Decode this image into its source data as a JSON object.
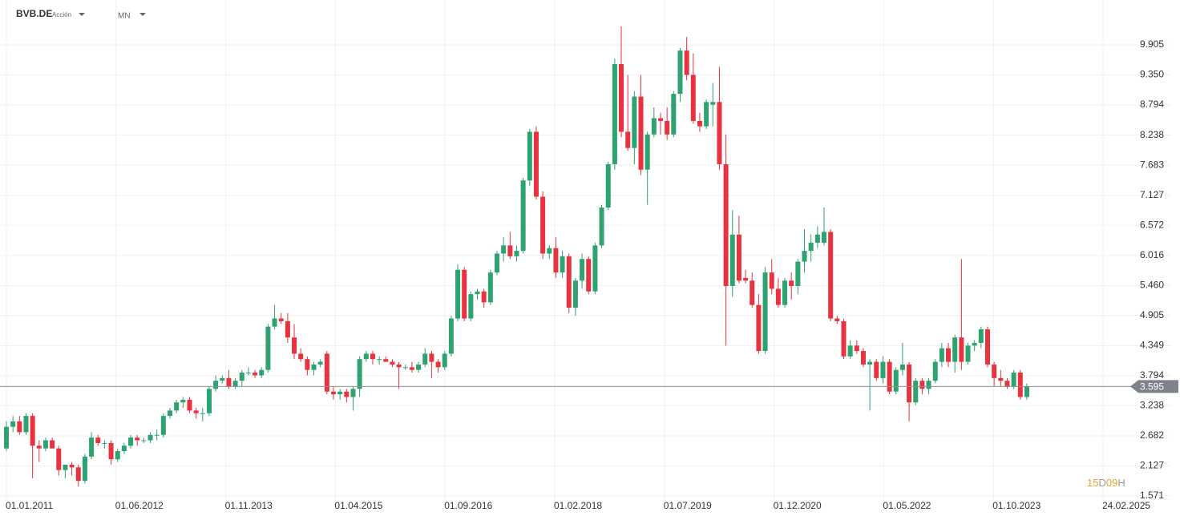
{
  "header": {
    "symbol": "BVB.DE",
    "kind": "Acción",
    "interval": "MN"
  },
  "timer": {
    "days": "15",
    "days_unit": "D",
    "hours": "09",
    "hours_unit": "H"
  },
  "chart_data": {
    "type": "candlestick",
    "open": [
      2.45,
      2.85,
      2.95,
      2.75,
      3.05,
      2.5,
      2.45,
      2.6,
      2.45,
      2.05,
      2.15,
      2.1,
      1.85,
      2.3,
      2.65,
      2.55,
      2.55,
      2.25,
      2.4,
      2.5,
      2.65,
      2.6,
      2.6,
      2.7,
      2.7,
      3.05,
      3.15,
      3.3,
      3.35,
      3.15,
      3.1,
      3.1,
      3.55,
      3.7,
      3.75,
      3.6,
      3.7,
      3.85,
      3.85,
      3.8,
      3.9,
      4.7,
      4.85,
      4.8,
      4.5,
      4.2,
      4.1,
      3.9,
      4.0,
      4.2,
      3.5,
      3.45,
      3.5,
      3.4,
      3.55,
      4.1,
      4.2,
      4.1,
      4.1,
      4.05,
      4.0,
      3.95,
      3.95,
      3.9,
      4.0,
      4.2,
      4.05,
      3.95,
      4.2,
      4.85,
      5.75,
      4.85,
      5.3,
      5.35,
      5.15,
      5.7,
      6.05,
      6.2,
      6.0,
      6.1,
      7.4,
      8.3,
      7.1,
      6.05,
      6.15,
      5.7,
      6.0,
      5.05,
      5.55,
      5.95,
      5.35,
      6.2,
      6.9,
      7.7,
      9.55,
      8.3,
      8.0,
      8.95,
      7.6,
      8.25,
      8.55,
      8.5,
      8.25,
      9.0,
      9.8,
      9.35,
      8.5,
      8.4,
      8.8,
      8.85,
      7.7,
      5.45,
      6.4,
      5.6,
      5.55,
      5.1,
      4.25,
      5.7,
      5.4,
      5.1,
      5.55,
      5.45,
      5.9,
      6.1,
      6.25,
      6.25,
      6.45,
      4.85,
      4.8,
      4.15,
      4.35,
      4.25,
      4.0,
      4.05,
      3.75,
      4.05,
      3.5,
      3.9,
      4.0,
      3.3,
      3.7,
      3.55,
      3.7,
      4.05,
      4.3,
      4.05,
      4.5,
      4.05,
      4.35,
      4.4,
      4.65,
      4.0,
      3.75,
      3.7,
      3.6,
      3.85,
      3.4
    ],
    "high": [
      2.95,
      3.05,
      3.05,
      3.1,
      3.1,
      2.6,
      2.65,
      2.65,
      2.5,
      2.15,
      2.2,
      2.15,
      2.35,
      2.75,
      2.7,
      2.6,
      2.6,
      2.45,
      2.55,
      2.7,
      2.7,
      2.65,
      2.75,
      2.8,
      3.1,
      3.2,
      3.35,
      3.4,
      3.4,
      3.2,
      3.2,
      3.6,
      3.8,
      3.8,
      3.9,
      3.75,
      3.9,
      3.95,
      3.9,
      3.95,
      4.75,
      5.1,
      4.95,
      4.95,
      4.75,
      4.3,
      4.15,
      4.05,
      4.1,
      4.25,
      3.6,
      3.55,
      3.55,
      3.6,
      4.15,
      4.25,
      4.25,
      4.15,
      4.15,
      4.1,
      4.05,
      4.0,
      4.05,
      4.05,
      4.3,
      4.25,
      4.1,
      4.25,
      4.9,
      5.85,
      5.8,
      5.35,
      5.4,
      5.4,
      5.75,
      6.1,
      6.35,
      6.45,
      6.2,
      7.45,
      8.35,
      8.4,
      7.2,
      6.2,
      6.35,
      6.1,
      6.05,
      5.6,
      6.05,
      6.0,
      6.25,
      6.95,
      7.75,
      9.65,
      10.25,
      9.35,
      9.05,
      9.35,
      8.3,
      8.75,
      8.65,
      8.75,
      9.05,
      9.85,
      10.05,
      9.75,
      8.65,
      8.9,
      9.2,
      9.5,
      8.25,
      6.85,
      6.75,
      5.75,
      5.7,
      5.3,
      5.8,
      5.95,
      5.6,
      5.6,
      5.7,
      5.95,
      6.5,
      6.4,
      6.55,
      6.9,
      6.5,
      4.9,
      4.85,
      4.45,
      4.45,
      4.3,
      4.1,
      4.1,
      4.15,
      4.1,
      3.95,
      4.4,
      4.05,
      3.75,
      3.75,
      3.75,
      4.1,
      4.4,
      4.4,
      4.55,
      5.95,
      4.4,
      4.45,
      4.7,
      4.7,
      4.05,
      3.9,
      3.75,
      3.9,
      3.9,
      3.65
    ],
    "low": [
      2.4,
      2.75,
      2.7,
      2.7,
      1.9,
      2.2,
      2.4,
      2.45,
      1.95,
      1.9,
      1.95,
      1.75,
      1.8,
      2.25,
      2.5,
      2.45,
      2.15,
      2.2,
      2.35,
      2.45,
      2.5,
      2.55,
      2.55,
      2.6,
      2.65,
      3.0,
      3.1,
      3.2,
      3.1,
      3.0,
      2.95,
      3.05,
      3.5,
      3.65,
      3.55,
      3.55,
      3.6,
      3.8,
      3.75,
      3.75,
      3.85,
      4.65,
      4.75,
      4.4,
      4.1,
      4.05,
      3.8,
      3.8,
      3.95,
      3.45,
      3.35,
      3.35,
      3.3,
      3.15,
      3.4,
      4.05,
      4.0,
      4.0,
      4.05,
      3.95,
      3.55,
      3.9,
      3.85,
      3.85,
      3.95,
      3.75,
      3.85,
      3.9,
      4.15,
      4.8,
      4.8,
      4.8,
      5.2,
      5.05,
      5.1,
      5.65,
      5.9,
      5.95,
      5.9,
      6.05,
      7.3,
      7.05,
      5.95,
      5.95,
      5.6,
      5.6,
      4.95,
      4.9,
      5.4,
      5.3,
      5.3,
      6.15,
      6.85,
      7.6,
      8.2,
      7.95,
      7.7,
      7.5,
      6.95,
      8.2,
      8.25,
      8.15,
      8.2,
      8.85,
      9.25,
      8.45,
      8.3,
      8.35,
      8.4,
      7.6,
      4.35,
      5.25,
      5.5,
      5.5,
      5.05,
      4.2,
      4.2,
      5.3,
      5.05,
      5.05,
      5.2,
      5.3,
      5.7,
      5.9,
      6.15,
      6.2,
      4.8,
      4.75,
      4.1,
      4.1,
      4.2,
      3.95,
      3.15,
      3.7,
      3.65,
      3.45,
      3.45,
      3.8,
      2.95,
      3.25,
      3.45,
      3.45,
      3.65,
      3.95,
      3.95,
      3.85,
      3.9,
      4.0,
      4.25,
      4.3,
      3.95,
      3.6,
      3.6,
      3.55,
      3.55,
      3.35,
      3.35
    ],
    "close": [
      2.85,
      2.95,
      2.75,
      3.05,
      2.5,
      2.45,
      2.6,
      2.45,
      2.05,
      2.15,
      2.1,
      1.85,
      2.3,
      2.65,
      2.55,
      2.55,
      2.25,
      2.4,
      2.5,
      2.65,
      2.6,
      2.6,
      2.7,
      2.7,
      3.05,
      3.15,
      3.3,
      3.35,
      3.15,
      3.1,
      3.1,
      3.55,
      3.7,
      3.75,
      3.6,
      3.7,
      3.85,
      3.85,
      3.8,
      3.9,
      4.7,
      4.85,
      4.8,
      4.5,
      4.2,
      4.1,
      3.9,
      4.0,
      4.05,
      3.5,
      3.45,
      3.5,
      3.4,
      3.55,
      4.1,
      4.2,
      4.1,
      4.1,
      4.05,
      4.0,
      3.95,
      3.95,
      3.9,
      4.0,
      4.2,
      4.05,
      3.95,
      4.2,
      4.85,
      5.75,
      4.85,
      5.3,
      5.35,
      5.15,
      5.7,
      6.05,
      6.2,
      6.0,
      6.1,
      7.4,
      8.3,
      7.1,
      6.05,
      6.15,
      5.7,
      6.0,
      5.05,
      5.55,
      5.95,
      5.35,
      6.2,
      6.9,
      7.7,
      9.55,
      8.3,
      8.0,
      8.95,
      7.6,
      8.25,
      8.55,
      8.5,
      8.25,
      9.0,
      9.8,
      9.35,
      8.5,
      8.4,
      8.85,
      8.85,
      7.7,
      5.45,
      6.4,
      5.55,
      5.55,
      5.1,
      4.25,
      5.7,
      5.4,
      5.1,
      5.55,
      5.45,
      5.9,
      6.1,
      6.25,
      6.4,
      6.45,
      4.85,
      4.8,
      4.15,
      4.35,
      4.25,
      4.0,
      4.05,
      3.75,
      4.05,
      3.5,
      3.9,
      4.0,
      3.3,
      3.7,
      3.55,
      3.7,
      4.05,
      4.3,
      4.05,
      4.5,
      4.05,
      4.35,
      4.4,
      4.65,
      4.0,
      3.75,
      3.7,
      3.6,
      3.85,
      3.4,
      3.6
    ],
    "up_color": "#2ea271",
    "down_color": "#e8323f",
    "last_price": 3.595,
    "ylim": [
      1.483,
      10.734
    ],
    "yticks": [
      {
        "value": 9.905,
        "label": "9.905"
      },
      {
        "value": 9.35,
        "label": "9.350"
      },
      {
        "value": 8.794,
        "label": "8.794"
      },
      {
        "value": 8.238,
        "label": "8.238"
      },
      {
        "value": 7.683,
        "label": "7.683"
      },
      {
        "value": 7.127,
        "label": "7.127"
      },
      {
        "value": 6.572,
        "label": "6.572"
      },
      {
        "value": 6.016,
        "label": "6.016"
      },
      {
        "value": 5.46,
        "label": "5.460"
      },
      {
        "value": 4.905,
        "label": "4.905"
      },
      {
        "value": 4.349,
        "label": "4.349"
      },
      {
        "value": 3.794,
        "label": "3.794"
      },
      {
        "value": 3.238,
        "label": "3.238"
      },
      {
        "value": 2.682,
        "label": "2.682"
      },
      {
        "value": 2.127,
        "label": "2.127"
      },
      {
        "value": 1.571,
        "label": "1.571"
      }
    ],
    "xticks": [
      "01.01.2011",
      "01.06.2012",
      "01.11.2013",
      "01.04.2015",
      "01.09.2016",
      "01.02.2018",
      "01.07.2019",
      "01.12.2020",
      "01.05.2022",
      "01.10.2023",
      "24.02.2025"
    ],
    "grid": true
  }
}
